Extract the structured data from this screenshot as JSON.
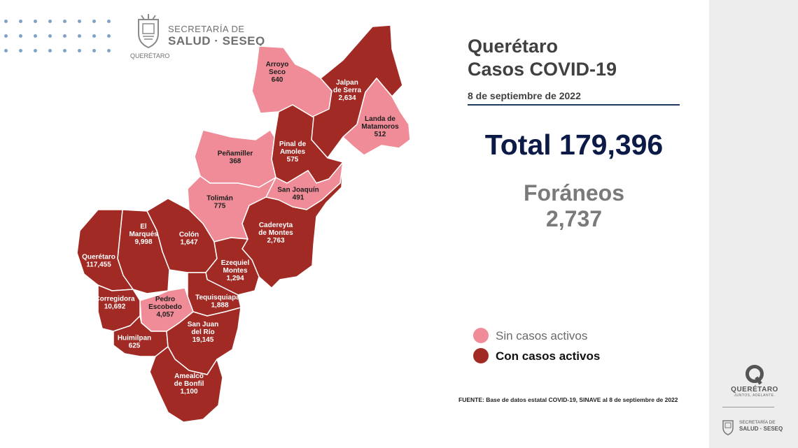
{
  "header": {
    "logo_line1": "SECRETARÍA DE",
    "logo_line2": "SALUD · SESEQ",
    "logo_line3": "QUERÉTARO"
  },
  "title_line1": "Querétaro",
  "title_line2": "Casos COVID-19",
  "date": "8 de septiembre de 2022",
  "total_label": "Total 179,396",
  "foraneos_label": "Foráneos",
  "foraneos_value": "2,737",
  "legend": {
    "no_active": "Sin casos activos",
    "active": "Con casos activos"
  },
  "colors": {
    "no_active": "#f08c98",
    "active": "#a12a24",
    "border": "#ffffff"
  },
  "source": "FUENTE: Base de datos estatal  COVID-19,  SINAVE  al 8 de septiembre de 2022",
  "right_logo": {
    "name": "QUERÉTARO",
    "tagline": "JUNTOS, ADELANTE.",
    "seseq_line1": "SECRETARÍA DE",
    "seseq_line2": "SALUD · SESEQ"
  },
  "municipalities": [
    {
      "id": "arroyo-seco",
      "name_lines": [
        "Arroyo",
        "Seco"
      ],
      "cases": "640",
      "active": false
    },
    {
      "id": "jalpan-de-serra",
      "name_lines": [
        "Jalpan",
        "de Serra"
      ],
      "cases": "2,634",
      "active": true
    },
    {
      "id": "landa-de-matamoros",
      "name_lines": [
        "Landa de",
        "Matamoros"
      ],
      "cases": "512",
      "active": false
    },
    {
      "id": "pinal-de-amoles",
      "name_lines": [
        "Pinal de",
        "Amoles"
      ],
      "cases": "575",
      "active": true
    },
    {
      "id": "penamiller",
      "name_lines": [
        "Peñamiller"
      ],
      "cases": "368",
      "active": false
    },
    {
      "id": "san-joaquin",
      "name_lines": [
        "San Joaquín"
      ],
      "cases": "491",
      "active": false
    },
    {
      "id": "toliman",
      "name_lines": [
        "Tolimán"
      ],
      "cases": "775",
      "active": false
    },
    {
      "id": "cadereyta-de-montes",
      "name_lines": [
        "Cadereyta",
        "de Montes"
      ],
      "cases": "2,763",
      "active": true
    },
    {
      "id": "colon",
      "name_lines": [
        "Colón"
      ],
      "cases": "1,647",
      "active": true
    },
    {
      "id": "el-marques",
      "name_lines": [
        "El",
        "Marqués"
      ],
      "cases": "9,998",
      "active": true
    },
    {
      "id": "queretaro",
      "name_lines": [
        "Querétaro"
      ],
      "cases": "117,455",
      "active": true
    },
    {
      "id": "ezequiel-montes",
      "name_lines": [
        "Ezequiel",
        "Montes"
      ],
      "cases": "1,294",
      "active": true
    },
    {
      "id": "tequisquiapan",
      "name_lines": [
        "Tequisquiapan"
      ],
      "cases": "1,888",
      "active": true
    },
    {
      "id": "corregidora",
      "name_lines": [
        "Corregidora"
      ],
      "cases": "10,692",
      "active": true
    },
    {
      "id": "pedro-escobedo",
      "name_lines": [
        "Pedro",
        "Escobedo"
      ],
      "cases": "4,057",
      "active": false
    },
    {
      "id": "huimilpan",
      "name_lines": [
        "Huimilpan"
      ],
      "cases": "625",
      "active": true
    },
    {
      "id": "san-juan-del-rio",
      "name_lines": [
        "San Juan",
        "del Río"
      ],
      "cases": "19,145",
      "active": true
    },
    {
      "id": "amealco-de-bonfil",
      "name_lines": [
        "Amealco",
        "de Bonfil"
      ],
      "cases": "1,100",
      "active": true
    }
  ]
}
